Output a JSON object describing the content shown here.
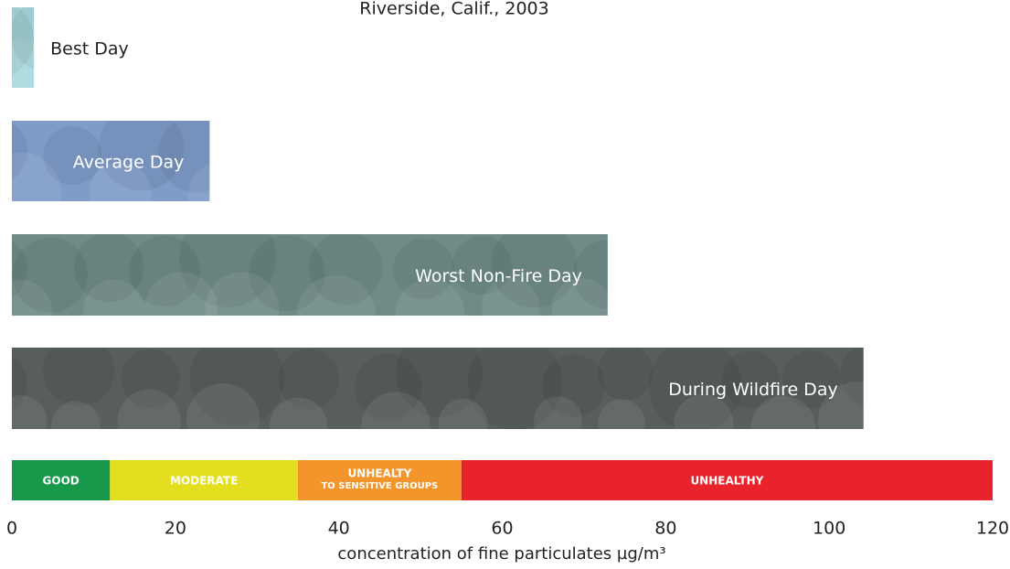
{
  "chart_data": {
    "type": "bar",
    "orientation": "horizontal",
    "title": "Riverside, Calif., 2003",
    "categories": [
      "Best Day",
      "Average Day",
      "Worst Non-Fire Day",
      "During Wildfire Day"
    ],
    "values": [
      2.7,
      24.2,
      72.9,
      104.2
    ],
    "colors": [
      "#a9d9df",
      "#7e9cc8",
      "#6e8b87",
      "#575e5b"
    ],
    "xlim": [
      0,
      120
    ],
    "xticks": [
      0,
      20,
      40,
      60,
      80,
      100,
      120
    ],
    "xlabel": "concentration of fine particulates µg/m³",
    "bands": [
      {
        "label": "GOOD",
        "from": 0,
        "to": 12,
        "color": "#17984a"
      },
      {
        "label": "MODERATE",
        "from": 12,
        "to": 35,
        "color": "#e3df1f"
      },
      {
        "label": "UNHEALTY",
        "sublabel": "TO SENSITIVE GROUPS",
        "from": 35,
        "to": 55,
        "color": "#f4952b"
      },
      {
        "label": "UNHEALTHY",
        "from": 55,
        "to": 120,
        "color": "#e8232b"
      }
    ]
  }
}
